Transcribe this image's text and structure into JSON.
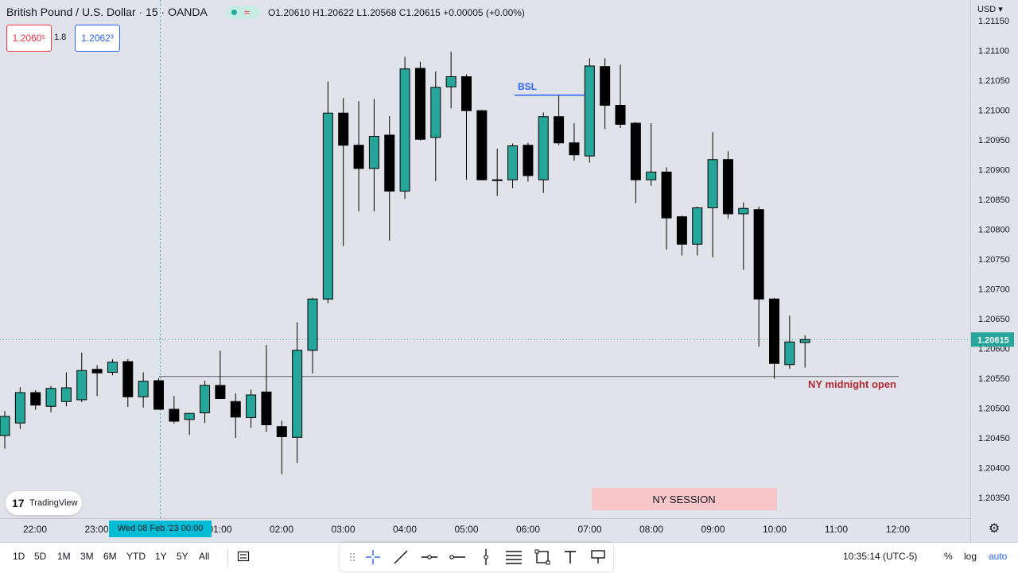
{
  "header": {
    "title": "British Pound / U.S. Dollar · 15 · OANDA",
    "ohlc": "O1.20610  H1.20622  L1.20568  C1.20615  +0.00005 (+0.00%)",
    "sell_price": "1.2060⁵",
    "buy_price": "1.2062³",
    "spread": "1.8",
    "currency": "USD"
  },
  "logo": {
    "text": "TradingView"
  },
  "crosshair": {
    "date_label": "Wed 08 Feb '23   00:00"
  },
  "bottom": {
    "ranges": [
      "1D",
      "5D",
      "1M",
      "3M",
      "6M",
      "YTD",
      "1Y",
      "5Y",
      "All"
    ],
    "time": "10:35:14 (UTC-5)",
    "percent": "%",
    "log": "log",
    "auto": "auto"
  },
  "colors": {
    "bull": "#26a69a",
    "bear": "#000000",
    "background": "#e1e3ea",
    "price_label": "#26a69a",
    "bsl_line": "#2962ff",
    "annotation_red": "#b22833",
    "session_box": "#f8c5c9"
  },
  "chart_data": {
    "type": "candlestick",
    "title": "British Pound / U.S. Dollar · 15 · OANDA",
    "y_ticks": [
      "1.21150",
      "1.21100",
      "1.21050",
      "1.21000",
      "1.20950",
      "1.20900",
      "1.20850",
      "1.20800",
      "1.20750",
      "1.20700",
      "1.20650",
      "1.20600",
      "1.20550",
      "1.20500",
      "1.20450",
      "1.20400",
      "1.20350"
    ],
    "x_ticks": [
      "22:00",
      "23:00",
      "00:00",
      "01:00",
      "02:00",
      "03:00",
      "04:00",
      "05:00",
      "06:00",
      "07:00",
      "08:00",
      "09:00",
      "10:00",
      "11:00",
      "12:00"
    ],
    "ylim": [
      1.2032,
      1.2116
    ],
    "last_price": "1.20615",
    "candles": [
      {
        "o": 1.20454,
        "h": 1.20495,
        "l": 1.20432,
        "c": 1.20486
      },
      {
        "o": 1.20475,
        "h": 1.20535,
        "l": 1.20465,
        "c": 1.20526
      },
      {
        "o": 1.20526,
        "h": 1.2053,
        "l": 1.20497,
        "c": 1.20505
      },
      {
        "o": 1.20503,
        "h": 1.20537,
        "l": 1.20493,
        "c": 1.20533
      },
      {
        "o": 1.20511,
        "h": 1.2056,
        "l": 1.20503,
        "c": 1.20534
      },
      {
        "o": 1.20514,
        "h": 1.20593,
        "l": 1.2051,
        "c": 1.20563
      },
      {
        "o": 1.20565,
        "h": 1.20572,
        "l": 1.2052,
        "c": 1.20559
      },
      {
        "o": 1.2056,
        "h": 1.20582,
        "l": 1.20555,
        "c": 1.20577
      },
      {
        "o": 1.20578,
        "h": 1.20582,
        "l": 1.20502,
        "c": 1.20519
      },
      {
        "o": 1.20519,
        "h": 1.2056,
        "l": 1.20501,
        "c": 1.20545
      },
      {
        "o": 1.20546,
        "h": 1.2055,
        "l": 1.20498,
        "c": 1.20498
      },
      {
        "o": 1.20498,
        "h": 1.2052,
        "l": 1.20474,
        "c": 1.20478
      },
      {
        "o": 1.20481,
        "h": 1.20492,
        "l": 1.20455,
        "c": 1.20491
      },
      {
        "o": 1.20492,
        "h": 1.20546,
        "l": 1.20475,
        "c": 1.20538
      },
      {
        "o": 1.20538,
        "h": 1.20596,
        "l": 1.20521,
        "c": 1.20516
      },
      {
        "o": 1.20511,
        "h": 1.20525,
        "l": 1.2045,
        "c": 1.20485
      },
      {
        "o": 1.20484,
        "h": 1.20531,
        "l": 1.20467,
        "c": 1.20522
      },
      {
        "o": 1.20527,
        "h": 1.20606,
        "l": 1.2046,
        "c": 1.20472
      },
      {
        "o": 1.20469,
        "h": 1.20479,
        "l": 1.20389,
        "c": 1.20452
      },
      {
        "o": 1.20451,
        "h": 1.20644,
        "l": 1.20408,
        "c": 1.20597
      },
      {
        "o": 1.20597,
        "h": 1.20685,
        "l": 1.20558,
        "c": 1.20683
      },
      {
        "o": 1.20683,
        "h": 1.21048,
        "l": 1.20676,
        "c": 1.20995
      },
      {
        "o": 1.20995,
        "h": 1.2102,
        "l": 1.20772,
        "c": 1.20941
      },
      {
        "o": 1.20941,
        "h": 1.21015,
        "l": 1.2083,
        "c": 1.20902
      },
      {
        "o": 1.20902,
        "h": 1.21019,
        "l": 1.2083,
        "c": 1.20956
      },
      {
        "o": 1.20958,
        "h": 1.2099,
        "l": 1.20781,
        "c": 1.20864
      },
      {
        "o": 1.20864,
        "h": 1.21089,
        "l": 1.20851,
        "c": 1.21069
      },
      {
        "o": 1.2107,
        "h": 1.21081,
        "l": 1.20949,
        "c": 1.20951
      },
      {
        "o": 1.20954,
        "h": 1.21065,
        "l": 1.20881,
        "c": 1.21038
      },
      {
        "o": 1.21039,
        "h": 1.21098,
        "l": 1.21003,
        "c": 1.21056
      },
      {
        "o": 1.21056,
        "h": 1.2106,
        "l": 1.20883,
        "c": 1.20999
      },
      {
        "o": 1.20999,
        "h": 1.21,
        "l": 1.20883,
        "c": 1.20883
      },
      {
        "o": 1.20883,
        "h": 1.20935,
        "l": 1.20856,
        "c": 1.20883
      },
      {
        "o": 1.20883,
        "h": 1.20944,
        "l": 1.20869,
        "c": 1.2094
      },
      {
        "o": 1.20941,
        "h": 1.20945,
        "l": 1.2088,
        "c": 1.2089
      },
      {
        "o": 1.20883,
        "h": 1.20996,
        "l": 1.20861,
        "c": 1.20989
      },
      {
        "o": 1.20989,
        "h": 1.21025,
        "l": 1.20941,
        "c": 1.20945
      },
      {
        "o": 1.20945,
        "h": 1.20978,
        "l": 1.20915,
        "c": 1.20925
      },
      {
        "o": 1.20923,
        "h": 1.21087,
        "l": 1.20912,
        "c": 1.21074
      },
      {
        "o": 1.21073,
        "h": 1.21087,
        "l": 1.20968,
        "c": 1.21008
      },
      {
        "o": 1.21008,
        "h": 1.21076,
        "l": 1.2097,
        "c": 1.20976
      },
      {
        "o": 1.20978,
        "h": 1.2098,
        "l": 1.20844,
        "c": 1.20883
      },
      {
        "o": 1.20883,
        "h": 1.20978,
        "l": 1.20873,
        "c": 1.20896
      },
      {
        "o": 1.20896,
        "h": 1.20904,
        "l": 1.20766,
        "c": 1.20819
      },
      {
        "o": 1.20821,
        "h": 1.20823,
        "l": 1.20756,
        "c": 1.20775
      },
      {
        "o": 1.20775,
        "h": 1.20838,
        "l": 1.20756,
        "c": 1.20836
      },
      {
        "o": 1.20836,
        "h": 1.20963,
        "l": 1.20753,
        "c": 1.20917
      },
      {
        "o": 1.20917,
        "h": 1.20931,
        "l": 1.20818,
        "c": 1.20826
      },
      {
        "o": 1.20826,
        "h": 1.20845,
        "l": 1.20732,
        "c": 1.20835
      },
      {
        "o": 1.20833,
        "h": 1.20838,
        "l": 1.20603,
        "c": 1.20683
      },
      {
        "o": 1.20683,
        "h": 1.20685,
        "l": 1.20549,
        "c": 1.20575
      },
      {
        "o": 1.20573,
        "h": 1.20655,
        "l": 1.20566,
        "c": 1.20611
      },
      {
        "o": 1.2061,
        "h": 1.20622,
        "l": 1.20568,
        "c": 1.20615
      }
    ],
    "annotations": {
      "bsl_label": "BSL",
      "bsl_level": 1.21025,
      "ny_midnight_label": "NY midnight open",
      "ny_midnight_level": 1.20553,
      "ny_session_label": "NY SESSION"
    }
  }
}
